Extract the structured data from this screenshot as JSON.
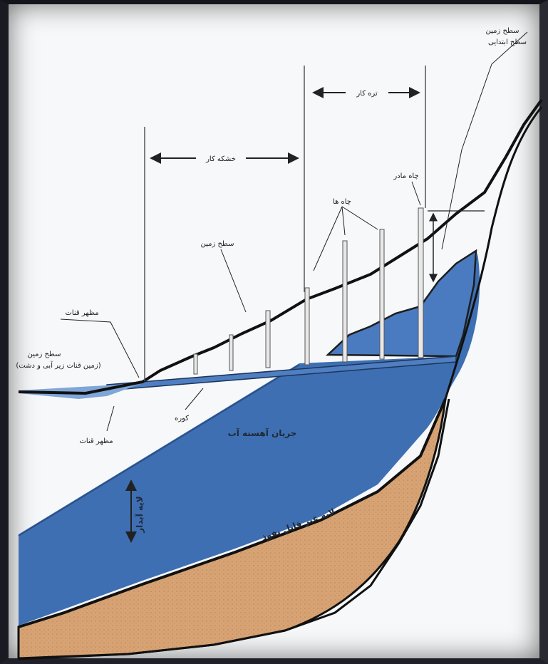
{
  "labels": {
    "initial_ground_surface": "سطح زمین",
    "initial_ground_surface_note": "سطح ابتدایی",
    "ground_surface": "سطح زمین",
    "wells": "چاه ها",
    "mother_well": "چاه مادر",
    "tunnel_section": "تره کار",
    "sinkhole_section": "خشکه کار",
    "outlet": "مظهر قنات",
    "outlet_ground": "سطح زمین",
    "outlet_ground_note": "(زمین قنات زیر آبی و دشت)",
    "qanat_mouth": "مظهر قنات",
    "gallery": "کوره",
    "slow_flow": "جریان آهسته آب",
    "aquifer": "لایه آبدار",
    "impermeable_layer": "لایه غیر قابل نفوذ"
  },
  "colors": {
    "water": "#3e6fb3",
    "water_light": "#5a88c6",
    "soil": "#d7a374",
    "ground_line": "#111111",
    "paper": "#f7f8f9"
  }
}
